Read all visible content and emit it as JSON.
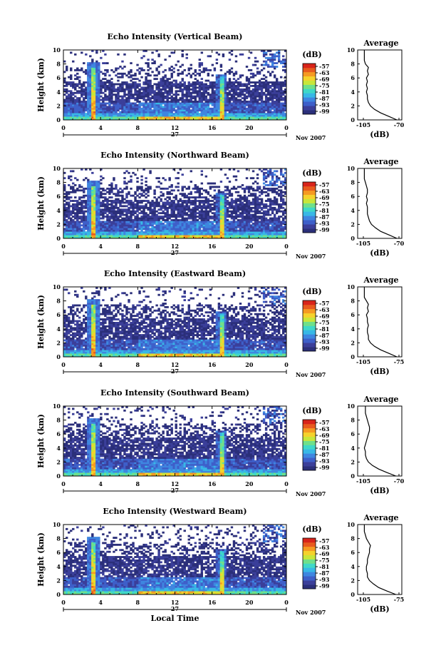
{
  "colors": {
    "scale": [
      "#2b2f7a",
      "#3b3f9a",
      "#3e5fc9",
      "#3f86e0",
      "#38b8e6",
      "#3fd8c8",
      "#6fe08a",
      "#c8e63a",
      "#f5d22c",
      "#f59a22",
      "#e85a1e",
      "#d8241a"
    ],
    "background": "#ffffff",
    "axis": "#000000"
  },
  "chart_data": [
    {
      "type": "heatmap",
      "title": "Echo Intensity (Vertical Beam)",
      "xlabel": "",
      "ylabel": "Height (km)",
      "x_ticks": [
        "0",
        "4",
        "8",
        "12",
        "16",
        "20",
        "0"
      ],
      "y_ticks": [
        "0",
        "2",
        "4",
        "6",
        "8",
        "10"
      ],
      "xlim": [
        0,
        24
      ],
      "ylim": [
        0,
        10
      ],
      "date_label": "27",
      "month_label": "Nov 2007",
      "colorbar": {
        "unit": "(dB)",
        "ticks": [
          "-57",
          "-63",
          "-69",
          "-75",
          "-81",
          "-87",
          "-93",
          "-99"
        ]
      },
      "profile": {
        "title": "Average",
        "x_ticks": [
          "-105",
          "-70"
        ],
        "xlim": [
          -105,
          -70
        ],
        "xlabel": "(dB)",
        "y_ticks": [
          "0",
          "2",
          "4",
          "6",
          "8",
          "10"
        ],
        "height": [
          0,
          0.5,
          1,
          1.5,
          2,
          2.5,
          3,
          3.5,
          4,
          4.5,
          5,
          5.5,
          6,
          6.5,
          7,
          7.5,
          8,
          8.5,
          9,
          9.5,
          10
        ],
        "power": [
          -72,
          -80,
          -88,
          -94,
          -98,
          -100,
          -101,
          -101,
          -102,
          -101,
          -102,
          -101,
          -102,
          -100,
          -101,
          -100,
          -103,
          -104,
          -104,
          -104,
          -104
        ]
      }
    },
    {
      "type": "heatmap",
      "title": "Echo Intensity (Northward Beam)",
      "xlabel": "",
      "ylabel": "Height (km)",
      "x_ticks": [
        "0",
        "4",
        "8",
        "12",
        "16",
        "20",
        "0"
      ],
      "y_ticks": [
        "0",
        "2",
        "4",
        "6",
        "8",
        "10"
      ],
      "xlim": [
        0,
        24
      ],
      "ylim": [
        0,
        10
      ],
      "date_label": "27",
      "month_label": "Nov 2007",
      "colorbar": {
        "unit": "(dB)",
        "ticks": [
          "-57",
          "-63",
          "-69",
          "-75",
          "-81",
          "-87",
          "-93",
          "-99"
        ]
      },
      "profile": {
        "title": "Average",
        "x_ticks": [
          "-105",
          "-70"
        ],
        "xlim": [
          -105,
          -70
        ],
        "xlabel": "(dB)",
        "y_ticks": [
          "0",
          "2",
          "4",
          "6",
          "8",
          "10"
        ],
        "height": [
          0,
          0.5,
          1,
          1.5,
          2,
          2.5,
          3,
          3.5,
          4,
          4.5,
          5,
          5.5,
          6,
          6.5,
          7,
          7.5,
          8,
          8.5,
          9,
          9.5,
          10
        ],
        "power": [
          -72,
          -80,
          -88,
          -93,
          -97,
          -99,
          -100,
          -101,
          -101,
          -101,
          -102,
          -101,
          -102,
          -101,
          -101,
          -102,
          -103,
          -104,
          -104,
          -104,
          -104
        ]
      }
    },
    {
      "type": "heatmap",
      "title": "Echo Intensity (Eastward Beam)",
      "xlabel": "",
      "ylabel": "Height (km)",
      "x_ticks": [
        "0",
        "4",
        "8",
        "12",
        "16",
        "20",
        "0"
      ],
      "y_ticks": [
        "0",
        "2",
        "4",
        "6",
        "8",
        "10"
      ],
      "xlim": [
        0,
        24
      ],
      "ylim": [
        0,
        10
      ],
      "date_label": "27",
      "month_label": "Nov 2007",
      "colorbar": {
        "unit": "(dB)",
        "ticks": [
          "-57",
          "-63",
          "-69",
          "-75",
          "-81",
          "-87",
          "-93",
          "-99"
        ]
      },
      "profile": {
        "title": "Average",
        "x_ticks": [
          "-105",
          "-75"
        ],
        "xlim": [
          -105,
          -70
        ],
        "xlabel": "(dB)",
        "y_ticks": [
          "0",
          "2",
          "4",
          "6",
          "8",
          "10"
        ],
        "height": [
          0,
          0.5,
          1,
          1.5,
          2,
          2.5,
          3,
          3.5,
          4,
          4.5,
          5,
          5.5,
          6,
          6.5,
          7,
          7.5,
          8,
          8.5,
          9,
          9.5,
          10
        ],
        "power": [
          -72,
          -80,
          -88,
          -94,
          -98,
          -100,
          -100,
          -101,
          -101,
          -100,
          -101,
          -101,
          -102,
          -100,
          -101,
          -100,
          -102,
          -104,
          -104,
          -104,
          -104
        ]
      }
    },
    {
      "type": "heatmap",
      "title": "Echo Intensity (Southward Beam)",
      "xlabel": "",
      "ylabel": "Height (km)",
      "x_ticks": [
        "0",
        "4",
        "8",
        "12",
        "16",
        "20",
        "0"
      ],
      "y_ticks": [
        "0",
        "2",
        "4",
        "6",
        "8",
        "10"
      ],
      "xlim": [
        0,
        24
      ],
      "ylim": [
        0,
        10
      ],
      "date_label": "27",
      "month_label": "Nov 2007",
      "colorbar": {
        "unit": "(dB)",
        "ticks": [
          "-57",
          "-63",
          "-69",
          "-75",
          "-81",
          "-87",
          "-93",
          "-99"
        ]
      },
      "profile": {
        "title": "Average",
        "x_ticks": [
          "-105",
          "-70"
        ],
        "xlim": [
          -105,
          -70
        ],
        "xlabel": "(dB)",
        "y_ticks": [
          "0",
          "2",
          "4",
          "6",
          "8",
          "10"
        ],
        "height": [
          0,
          0.5,
          1,
          1.5,
          2,
          2.5,
          3,
          3.5,
          4,
          4.5,
          5,
          5.5,
          6,
          6.5,
          7,
          7.5,
          8,
          8.5,
          9,
          9.5,
          10
        ],
        "power": [
          -73,
          -82,
          -90,
          -96,
          -100,
          -102,
          -103,
          -103,
          -104,
          -103,
          -102,
          -101,
          -100,
          -99,
          -99,
          -100,
          -101,
          -102,
          -103,
          -103,
          -103
        ]
      }
    },
    {
      "type": "heatmap",
      "title": "Echo Intensity (Westward Beam)",
      "xlabel": "Local Time",
      "ylabel": "Height (km)",
      "x_ticks": [
        "0",
        "4",
        "8",
        "12",
        "16",
        "20",
        "0"
      ],
      "y_ticks": [
        "0",
        "2",
        "4",
        "6",
        "8",
        "10"
      ],
      "xlim": [
        0,
        24
      ],
      "ylim": [
        0,
        10
      ],
      "date_label": "27",
      "month_label": "Nov 2007",
      "colorbar": {
        "unit": "(dB)",
        "ticks": [
          "-57",
          "-63",
          "-69",
          "-75",
          "-81",
          "-87",
          "-93",
          "-99"
        ]
      },
      "profile": {
        "title": "Average",
        "x_ticks": [
          "-105",
          "-75"
        ],
        "xlim": [
          -105,
          -70
        ],
        "xlabel": "(dB)",
        "y_ticks": [
          "0",
          "2",
          "4",
          "6",
          "8",
          "10"
        ],
        "height": [
          0,
          0.5,
          1,
          1.5,
          2,
          2.5,
          3,
          3.5,
          4,
          4.5,
          5,
          5.5,
          6,
          6.5,
          7,
          7.5,
          8,
          8.5,
          9,
          9.5,
          10
        ],
        "power": [
          -73,
          -82,
          -90,
          -95,
          -99,
          -101,
          -101,
          -102,
          -102,
          -101,
          -101,
          -100,
          -99,
          -99,
          -98,
          -100,
          -102,
          -103,
          -104,
          -104,
          -104
        ]
      }
    }
  ]
}
